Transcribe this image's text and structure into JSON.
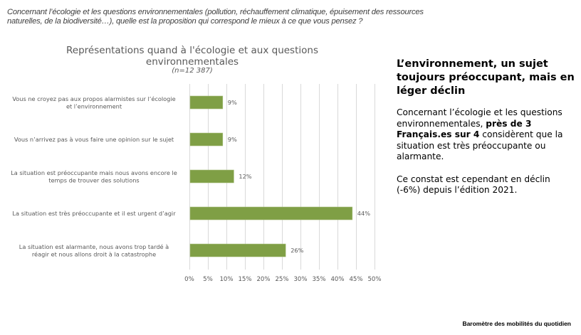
{
  "question": "Concernant l’écologie et les questions environnementales (pollution, réchauffement climatique, épuisement des ressources naturelles, de la biodiversité…), quelle est la proposition qui correspond le mieux à ce que vous pensez ?",
  "chart_data": {
    "type": "bar",
    "orientation": "horizontal",
    "title": "Représentations quand à l'écologie et aux questions environnementales",
    "subtitle": "(n=12 387)",
    "xlabel": "",
    "ylabel": "",
    "xlim": [
      0,
      50
    ],
    "grid": true,
    "legend": "none",
    "color": "#7f9f45",
    "categories": [
      [
        "Vous ne croyez pas aux propos alarmistes sur l’écologie",
        "et l’environnement"
      ],
      [
        "Vous n’arrivez pas à vous faire une opinion sur le sujet"
      ],
      [
        "La situation est préoccupante mais nous avons encore le",
        "temps de trouver des solutions"
      ],
      [
        "La situation est très préoccupante et il est urgent d’agir"
      ],
      [
        "La situation est alarmante, nous avons trop tardé à",
        "réagir et nous allons droit à la catastrophe"
      ]
    ],
    "values": [
      9,
      9,
      12,
      44,
      26
    ],
    "value_labels": [
      "9%",
      "9%",
      "12%",
      "44%",
      "26%"
    ],
    "ticks": [
      0,
      5,
      10,
      15,
      20,
      25,
      30,
      35,
      40,
      45,
      50
    ],
    "tick_labels": [
      "0%",
      "5%",
      "10%",
      "15%",
      "20%",
      "25%",
      "30%",
      "35%",
      "40%",
      "45%",
      "50%"
    ]
  },
  "side_panel": {
    "heading": "L’environnement, un sujet toujours préoccupant, mais en léger déclin",
    "para1_before": "Concernant l’écologie et les questions environnementales, ",
    "para1_bold": "près de 3 Français.es sur 4",
    "para1_after": " considèrent que la situation est très préoccupante ou alarmante.",
    "para2": "Ce constat est cependant en déclin (-6%) depuis l’édition 2021."
  },
  "footer": "Baromètre des mobilités du quotidien"
}
